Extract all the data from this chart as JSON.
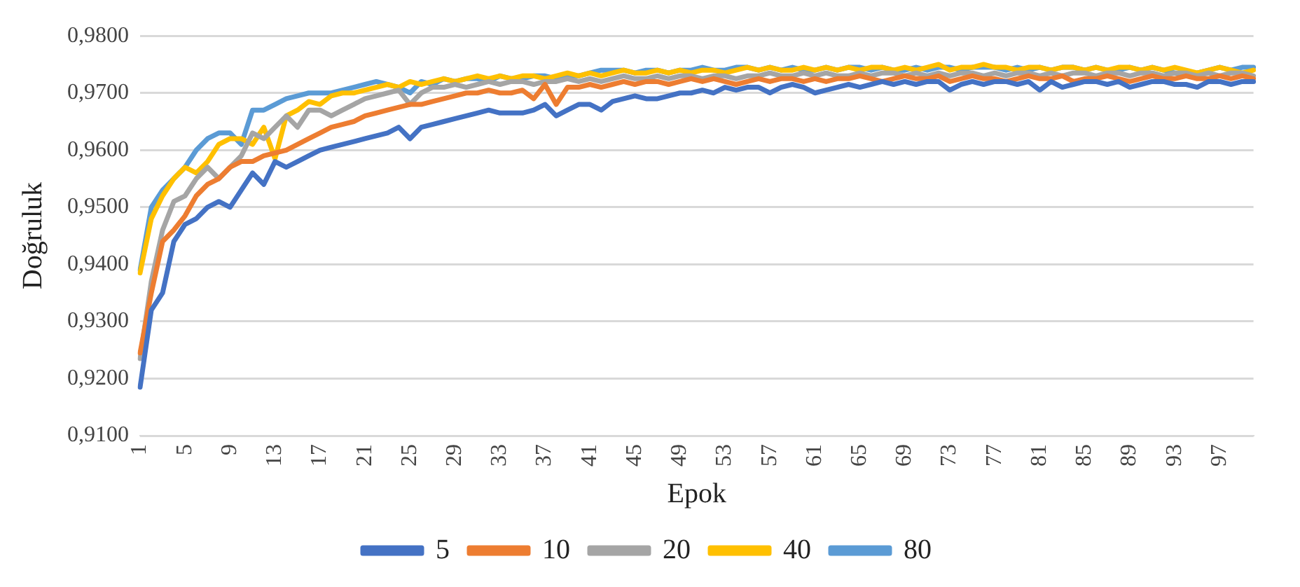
{
  "chart_data": {
    "type": "line",
    "xlabel": "Epok",
    "ylabel": "Doğruluk",
    "categories": [
      "1",
      null,
      null,
      null,
      "5",
      null,
      null,
      null,
      "9",
      null,
      null,
      null,
      "13",
      null,
      null,
      null,
      "17",
      null,
      null,
      null,
      "21",
      null,
      null,
      null,
      "25",
      null,
      null,
      null,
      "29",
      null,
      null,
      null,
      "33",
      null,
      null,
      null,
      "37",
      null,
      null,
      null,
      "41",
      null,
      null,
      null,
      "45",
      null,
      null,
      null,
      "49",
      null,
      null,
      null,
      "53",
      null,
      null,
      null,
      "57",
      null,
      null,
      null,
      "61",
      null,
      null,
      null,
      "65",
      null,
      null,
      null,
      "69",
      null,
      null,
      null,
      "73",
      null,
      null,
      null,
      "77",
      null,
      null,
      null,
      "81",
      null,
      null,
      null,
      "85",
      null,
      null,
      null,
      "89",
      null,
      null,
      null,
      "93",
      null,
      null,
      null,
      "97",
      null,
      null,
      null
    ],
    "ylim": [
      0.91,
      0.98
    ],
    "yticks": [
      {
        "value": 0.91,
        "label": "0,9100"
      },
      {
        "value": 0.92,
        "label": "0,9200"
      },
      {
        "value": 0.93,
        "label": "0,9300"
      },
      {
        "value": 0.94,
        "label": "0,9400"
      },
      {
        "value": 0.95,
        "label": "0,9500"
      },
      {
        "value": 0.96,
        "label": "0,9600"
      },
      {
        "value": 0.97,
        "label": "0,9700"
      },
      {
        "value": 0.98,
        "label": "0,9800"
      }
    ],
    "grid": "y",
    "legend": "bottom",
    "marker": "none",
    "line_style": "solid",
    "series": [
      {
        "name": "5",
        "color": "#4472c4",
        "values": [
          0.9185,
          0.932,
          0.935,
          0.944,
          0.947,
          0.948,
          0.95,
          0.951,
          0.95,
          0.953,
          0.956,
          0.954,
          0.958,
          0.957,
          0.958,
          0.959,
          0.96,
          0.9605,
          0.961,
          0.9615,
          0.962,
          0.9625,
          0.963,
          0.964,
          0.962,
          0.964,
          0.9645,
          0.965,
          0.9655,
          0.966,
          0.9665,
          0.967,
          0.9665,
          0.9665,
          0.9665,
          0.967,
          0.968,
          0.966,
          0.967,
          0.968,
          0.968,
          0.967,
          0.9685,
          0.969,
          0.9695,
          0.969,
          0.969,
          0.9695,
          0.97,
          0.97,
          0.9705,
          0.97,
          0.971,
          0.9705,
          0.971,
          0.971,
          0.97,
          0.971,
          0.9715,
          0.971,
          0.97,
          0.9705,
          0.971,
          0.9715,
          0.971,
          0.9715,
          0.972,
          0.9715,
          0.972,
          0.9715,
          0.972,
          0.972,
          0.9705,
          0.9715,
          0.972,
          0.9715,
          0.972,
          0.972,
          0.9715,
          0.972,
          0.9705,
          0.972,
          0.971,
          0.9715,
          0.972,
          0.972,
          0.9715,
          0.972,
          0.971,
          0.9715,
          0.972,
          0.972,
          0.9715,
          0.9715,
          0.971,
          0.972,
          0.972,
          0.9715,
          0.972,
          0.972
        ]
      },
      {
        "name": "10",
        "color": "#ed7d31",
        "values": [
          0.9245,
          0.935,
          0.944,
          0.946,
          0.9485,
          0.952,
          0.954,
          0.955,
          0.957,
          0.958,
          0.958,
          0.959,
          0.9595,
          0.96,
          0.961,
          0.962,
          0.963,
          0.964,
          0.9645,
          0.965,
          0.966,
          0.9665,
          0.967,
          0.9675,
          0.968,
          0.968,
          0.9685,
          0.969,
          0.9695,
          0.97,
          0.97,
          0.9705,
          0.97,
          0.97,
          0.9705,
          0.969,
          0.9715,
          0.968,
          0.971,
          0.971,
          0.9715,
          0.971,
          0.9715,
          0.972,
          0.9715,
          0.972,
          0.972,
          0.9715,
          0.972,
          0.9725,
          0.972,
          0.9725,
          0.972,
          0.9715,
          0.972,
          0.9725,
          0.972,
          0.9725,
          0.9725,
          0.972,
          0.9725,
          0.972,
          0.9725,
          0.9725,
          0.973,
          0.9725,
          0.972,
          0.9725,
          0.973,
          0.9725,
          0.9725,
          0.973,
          0.972,
          0.9725,
          0.973,
          0.9725,
          0.9725,
          0.972,
          0.9725,
          0.973,
          0.9725,
          0.9725,
          0.973,
          0.972,
          0.9725,
          0.9725,
          0.973,
          0.9725,
          0.972,
          0.9725,
          0.973,
          0.9725,
          0.9725,
          0.973,
          0.9725,
          0.9725,
          0.973,
          0.9725,
          0.973,
          0.9725
        ]
      },
      {
        "name": "20",
        "color": "#a5a5a5",
        "values": [
          0.9235,
          0.937,
          0.946,
          0.951,
          0.952,
          0.955,
          0.957,
          0.955,
          0.957,
          0.959,
          0.963,
          0.962,
          0.964,
          0.966,
          0.964,
          0.967,
          0.967,
          0.966,
          0.967,
          0.968,
          0.969,
          0.9695,
          0.97,
          0.9705,
          0.968,
          0.97,
          0.971,
          0.971,
          0.9715,
          0.971,
          0.9715,
          0.972,
          0.9715,
          0.972,
          0.972,
          0.9715,
          0.972,
          0.972,
          0.9725,
          0.972,
          0.9725,
          0.972,
          0.9725,
          0.973,
          0.9725,
          0.9725,
          0.973,
          0.9725,
          0.973,
          0.973,
          0.9725,
          0.973,
          0.973,
          0.9725,
          0.973,
          0.973,
          0.9735,
          0.973,
          0.973,
          0.9735,
          0.973,
          0.9735,
          0.973,
          0.973,
          0.9735,
          0.973,
          0.9735,
          0.9735,
          0.973,
          0.9735,
          0.973,
          0.9735,
          0.973,
          0.9735,
          0.9735,
          0.973,
          0.9735,
          0.973,
          0.9735,
          0.9735,
          0.973,
          0.9735,
          0.973,
          0.9735,
          0.9735,
          0.973,
          0.9735,
          0.9735,
          0.973,
          0.9735,
          0.9735,
          0.973,
          0.9735,
          0.9735,
          0.973,
          0.9735,
          0.973,
          0.9735,
          0.9735,
          0.973
        ]
      },
      {
        "name": "40",
        "color": "#ffc000",
        "values": [
          0.9385,
          0.948,
          0.952,
          0.955,
          0.957,
          0.956,
          0.958,
          0.961,
          0.962,
          0.962,
          0.961,
          0.964,
          0.9585,
          0.966,
          0.967,
          0.9685,
          0.968,
          0.9695,
          0.97,
          0.97,
          0.9705,
          0.971,
          0.9715,
          0.971,
          0.972,
          0.9715,
          0.972,
          0.9725,
          0.972,
          0.9725,
          0.973,
          0.9725,
          0.973,
          0.9725,
          0.973,
          0.973,
          0.9725,
          0.973,
          0.9735,
          0.973,
          0.9735,
          0.973,
          0.9735,
          0.974,
          0.9735,
          0.9735,
          0.974,
          0.9735,
          0.974,
          0.9735,
          0.974,
          0.974,
          0.9735,
          0.974,
          0.9745,
          0.974,
          0.9745,
          0.974,
          0.974,
          0.9745,
          0.974,
          0.9745,
          0.974,
          0.9745,
          0.974,
          0.9745,
          0.9745,
          0.974,
          0.9745,
          0.974,
          0.9745,
          0.975,
          0.974,
          0.9745,
          0.9745,
          0.975,
          0.9745,
          0.9745,
          0.974,
          0.9745,
          0.9745,
          0.974,
          0.9745,
          0.9745,
          0.974,
          0.9745,
          0.974,
          0.9745,
          0.9745,
          0.974,
          0.9745,
          0.974,
          0.9745,
          0.974,
          0.9735,
          0.974,
          0.9745,
          0.974,
          0.9735,
          0.974
        ]
      },
      {
        "name": "80",
        "color": "#5b9bd5",
        "values": [
          0.939,
          0.95,
          0.953,
          0.955,
          0.957,
          0.96,
          0.962,
          0.963,
          0.963,
          0.961,
          0.967,
          0.967,
          0.968,
          0.969,
          0.9695,
          0.97,
          0.97,
          0.97,
          0.9705,
          0.971,
          0.9715,
          0.972,
          0.9715,
          0.971,
          0.97,
          0.972,
          0.9715,
          0.9725,
          0.972,
          0.9725,
          0.9725,
          0.972,
          0.973,
          0.9725,
          0.9725,
          0.973,
          0.973,
          0.9725,
          0.973,
          0.973,
          0.9735,
          0.974,
          0.974,
          0.974,
          0.9735,
          0.974,
          0.974,
          0.9735,
          0.974,
          0.974,
          0.9745,
          0.974,
          0.974,
          0.9745,
          0.9745,
          0.974,
          0.9745,
          0.974,
          0.9745,
          0.974,
          0.974,
          0.9745,
          0.974,
          0.9745,
          0.9745,
          0.974,
          0.9745,
          0.974,
          0.974,
          0.9745,
          0.974,
          0.9745,
          0.9745,
          0.974,
          0.9745,
          0.9745,
          0.9745,
          0.974,
          0.9745,
          0.974,
          0.9745,
          0.974,
          0.9745,
          0.9745,
          0.974,
          0.9745,
          0.974,
          0.974,
          0.9745,
          0.974,
          0.9745,
          0.974,
          0.9735,
          0.973,
          0.9735,
          0.974,
          0.9745,
          0.974,
          0.9745,
          0.9745
        ]
      }
    ]
  }
}
